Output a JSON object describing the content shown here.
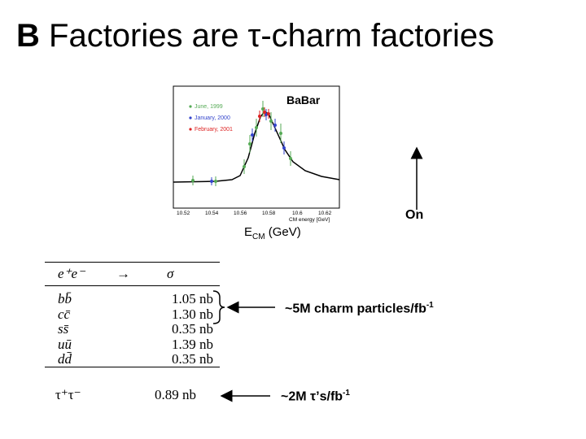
{
  "title": {
    "prefix": "B",
    "text": "Factories are τ-charm factories"
  },
  "plot": {
    "brand": "BaBar",
    "legend": [
      "June, 1999",
      "January, 2000",
      "February, 2001"
    ],
    "legend_colors": [
      "#55aa55",
      "#3344cc",
      "#dd2222"
    ],
    "xticks": [
      "10.52",
      "10.54",
      "10.56",
      "10.58",
      "10.6",
      "10.62"
    ],
    "xaxis_label": "CM energy [GeV]"
  },
  "ecm_label": {
    "main": "E",
    "sub": "CM",
    "unit": " (GeV)"
  },
  "on_label": "On",
  "table": {
    "header_left": "e⁺e⁻",
    "header_arrow": "→",
    "header_right": "σ",
    "rows": [
      {
        "process": "bb̄",
        "value": "1.05 nb"
      },
      {
        "process": "cc̄",
        "value": "1.30 nb"
      },
      {
        "process": "ss̄",
        "value": "0.35 nb"
      },
      {
        "process": "uū",
        "value": "1.39 nb"
      },
      {
        "process": "dd̄",
        "value": "0.35 nb"
      }
    ],
    "tau_process": "τ⁺τ⁻",
    "tau_value": "0.89 nb"
  },
  "notes": {
    "charm": "~5M charm particles/fb",
    "charm_sup": "-1",
    "tau": "~2M τ’s/fb",
    "tau_sup": "-1"
  }
}
